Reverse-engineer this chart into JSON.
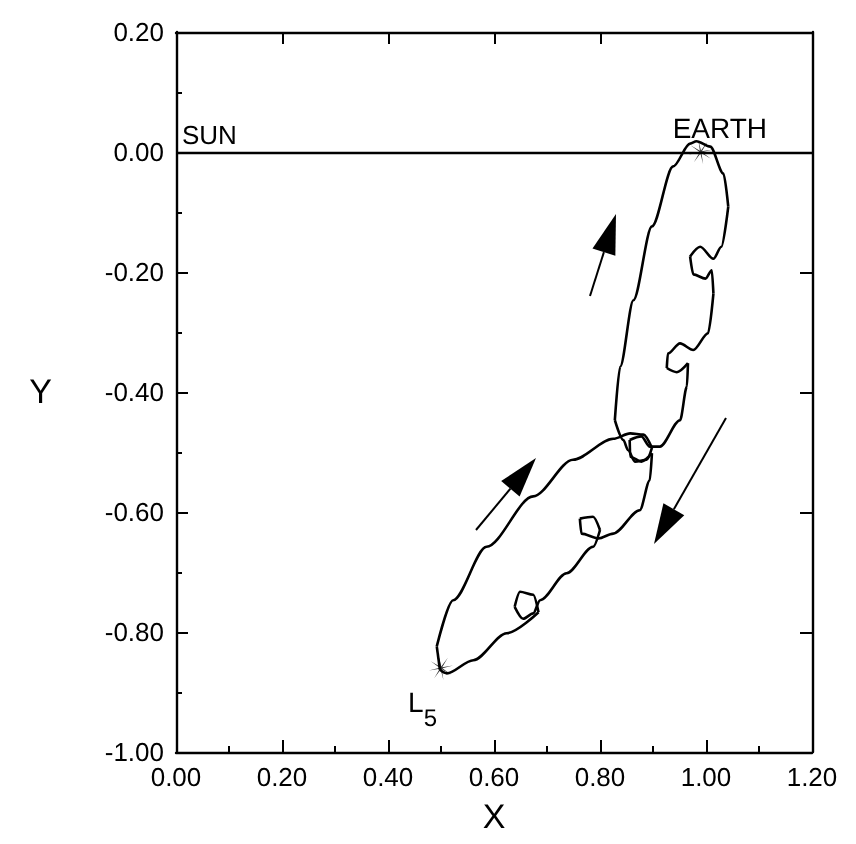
{
  "chart_data": {
    "type": "line",
    "xlabel": "X",
    "ylabel": "Y",
    "xlim": [
      0,
      1.2
    ],
    "ylim": [
      -1,
      0.2
    ],
    "xticks": [
      {
        "value": 0,
        "label": "0.00"
      },
      {
        "value": 0.2,
        "label": "0.20"
      },
      {
        "value": 0.4,
        "label": "0.40"
      },
      {
        "value": 0.6,
        "label": "0.60"
      },
      {
        "value": 0.8,
        "label": "0.80"
      },
      {
        "value": 1,
        "label": "1.00"
      },
      {
        "value": 1.2,
        "label": "1.20"
      }
    ],
    "yticks": [
      {
        "value": -1,
        "label": "-1.00"
      },
      {
        "value": -0.8,
        "label": "-0.80"
      },
      {
        "value": -0.6,
        "label": "-0.60"
      },
      {
        "value": -0.4,
        "label": "-0.40"
      },
      {
        "value": -0.2,
        "label": "-0.20"
      },
      {
        "value": 0,
        "label": "0.00"
      },
      {
        "value": 0.2,
        "label": "0.20"
      }
    ],
    "grid": false,
    "marker": "none",
    "line_style": "solid",
    "series": [
      {
        "color": "#000000",
        "x": [
          0.498,
          0.492
        ],
        "values": [
          -0.863,
          -0.824
        ]
      },
      {
        "color": "#000000",
        "x": [
          0.492,
          0.523,
          0.586,
          0.674,
          0.749,
          0.825,
          0.857,
          0.882,
          0.898
        ],
        "values": [
          -0.824,
          -0.747,
          -0.658,
          -0.574,
          -0.513,
          -0.478,
          -0.469,
          -0.471,
          -0.493
        ]
      },
      {
        "color": "#000000",
        "x": [
          0.898,
          0.888,
          0.866,
          0.853,
          0.844,
          0.828
        ],
        "values": [
          -0.493,
          -0.513,
          -0.516,
          -0.497,
          -0.48,
          -0.447
        ]
      },
      {
        "color": "#000000",
        "x": [
          0.828,
          0.838,
          0.863,
          0.898,
          0.938,
          0.97,
          0.982,
          1.008,
          1.033,
          1.042
        ],
        "values": [
          -0.447,
          -0.358,
          -0.247,
          -0.124,
          -0.024,
          0.014,
          0.018,
          0.009,
          -0.036,
          -0.091
        ]
      },
      {
        "color": "#000000",
        "x": [
          1.042,
          1.029,
          1.014,
          0.989,
          0.97
        ],
        "values": [
          -0.091,
          -0.158,
          -0.178,
          -0.158,
          -0.174
        ]
      },
      {
        "color": "#000000",
        "x": [
          0.97,
          0.976,
          0.999,
          1.011,
          1.014
        ],
        "values": [
          -0.174,
          -0.204,
          -0.211,
          -0.197,
          -0.236
        ]
      },
      {
        "color": "#000000",
        "x": [
          1.014,
          1.004,
          0.976,
          0.951,
          0.928,
          0.926
        ],
        "values": [
          -0.236,
          -0.302,
          -0.33,
          -0.319,
          -0.336,
          -0.36
        ]
      },
      {
        "color": "#000000",
        "x": [
          0.926,
          0.945,
          0.966
        ],
        "values": [
          -0.36,
          -0.367,
          -0.352
        ]
      },
      {
        "color": "#000000",
        "x": [
          0.966,
          0.964,
          0.951,
          0.913,
          0.894,
          0.878,
          0.856
        ],
        "values": [
          -0.352,
          -0.391,
          -0.447,
          -0.491,
          -0.491,
          -0.474,
          -0.48
        ]
      },
      {
        "color": "#000000",
        "x": [
          0.856,
          0.857,
          0.878,
          0.898
        ],
        "values": [
          -0.48,
          -0.508,
          -0.516,
          -0.502
        ]
      },
      {
        "color": "#000000",
        "x": [
          0.898,
          0.894,
          0.875,
          0.825,
          0.797,
          0.765,
          0.762
        ],
        "values": [
          -0.502,
          -0.547,
          -0.597,
          -0.636,
          -0.644,
          -0.636,
          -0.611
        ]
      },
      {
        "color": "#000000",
        "x": [
          0.762,
          0.787,
          0.8
        ],
        "values": [
          -0.611,
          -0.608,
          -0.63
        ]
      },
      {
        "color": "#000000",
        "x": [
          0.8,
          0.787,
          0.737,
          0.687,
          0.674,
          0.655,
          0.639
        ],
        "values": [
          -0.63,
          -0.658,
          -0.702,
          -0.747,
          -0.769,
          -0.778,
          -0.758
        ]
      },
      {
        "color": "#000000",
        "x": [
          0.639,
          0.649,
          0.674,
          0.684
        ],
        "values": [
          -0.758,
          -0.733,
          -0.738,
          -0.767
        ]
      },
      {
        "color": "#000000",
        "x": [
          0.684,
          0.624,
          0.561,
          0.511,
          0.498
        ],
        "values": [
          -0.767,
          -0.802,
          -0.847,
          -0.869,
          -0.863
        ]
      },
      {
        "type": "scatter",
        "color": "#000000",
        "marker": "cross",
        "x": [
          0.5,
          0.99
        ],
        "values": [
          -0.86,
          0.0
        ]
      }
    ],
    "ref_lines": [
      {
        "axis": "y",
        "value": 0,
        "label": "SUN",
        "color": "#000000"
      }
    ],
    "annotations": [
      {
        "text": "EARTH",
        "x": 0.99,
        "y": 0.0
      },
      {
        "text": "L$_{5}$",
        "x": 0.5,
        "y": -0.86
      }
    ]
  }
}
